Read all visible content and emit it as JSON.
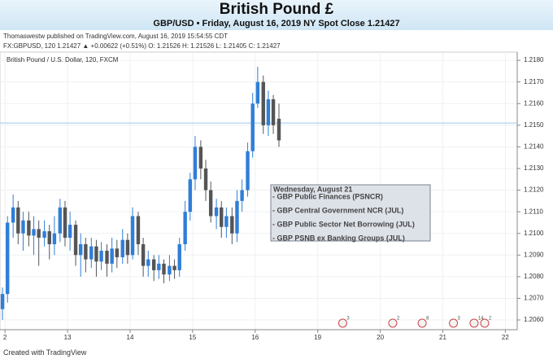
{
  "header": {
    "title": "British Pound £",
    "subtitle": "GBP/USD • Friday, August 16, 2019 NY Spot Close 1.21427"
  },
  "published": "Thomaswestw published on TradingView.com, August 16, 2019 15:54:55 CDT",
  "quote_line": "FX:GBPUSD, 120  1.21427  ▲ +0.00622 (+0.51%)  O: 1.21526  H: 1.21526  L: 1.21405  C: 1.21427",
  "footer": "Created with TradingView",
  "chart_data": {
    "type": "candlestick",
    "subtitle": "British Pound / U.S. Dollar, 120, FXCM",
    "up_color": "#2f7ed8",
    "down_color": "#555555",
    "grid": true,
    "x": [
      -0.04,
      0.04,
      0.13,
      0.21,
      0.29,
      0.38,
      0.46,
      0.54,
      0.63,
      0.71,
      0.79,
      0.88,
      0.96,
      1.04,
      1.13,
      1.21,
      1.29,
      1.38,
      1.46,
      1.54,
      1.63,
      1.71,
      1.79,
      1.88,
      1.96,
      2.04,
      2.13,
      2.21,
      2.29,
      2.38,
      2.46,
      2.54,
      2.63,
      2.71,
      2.79,
      2.88,
      2.96,
      3.04,
      3.13,
      3.21,
      3.29,
      3.38,
      3.46,
      3.54,
      3.63,
      3.71,
      3.79,
      3.88,
      3.96,
      4.04,
      4.13,
      4.21,
      4.29,
      4.38
    ],
    "open": [
      1.2065,
      1.2072,
      1.2105,
      1.2112,
      1.21,
      1.2106,
      1.2099,
      1.2102,
      1.2098,
      1.2101,
      1.2095,
      1.21,
      1.2112,
      1.2098,
      1.2104,
      1.209,
      1.2095,
      1.2088,
      1.2094,
      1.2087,
      1.2092,
      1.2086,
      1.2093,
      1.2089,
      1.2097,
      1.209,
      1.2108,
      1.2095,
      1.2085,
      1.2088,
      1.2083,
      1.2086,
      1.2081,
      1.2085,
      1.2083,
      1.2095,
      1.211,
      1.2125,
      1.214,
      1.213,
      1.212,
      1.2108,
      1.2112,
      1.2103,
      1.2108,
      1.21,
      1.2115,
      1.212,
      1.2138,
      1.216,
      1.217,
      1.215,
      1.2162,
      1.2153
    ],
    "high": [
      1.2075,
      1.2108,
      1.2118,
      1.2115,
      1.211,
      1.211,
      1.2108,
      1.2106,
      1.2106,
      1.2104,
      1.2108,
      1.2116,
      1.2115,
      1.211,
      1.2106,
      1.21,
      1.2098,
      1.2098,
      1.2097,
      1.2096,
      1.2095,
      1.2098,
      1.2097,
      1.2102,
      1.21,
      1.2112,
      1.211,
      1.2098,
      1.2092,
      1.209,
      1.209,
      1.2088,
      1.209,
      1.2088,
      1.2098,
      1.2115,
      1.2128,
      1.2145,
      1.2143,
      1.2134,
      1.2124,
      1.2116,
      1.2115,
      1.2112,
      1.2112,
      1.212,
      1.2125,
      1.2142,
      1.2165,
      1.2177,
      1.2173,
      1.2166,
      1.2164,
      1.216
    ],
    "low": [
      1.206,
      1.2068,
      1.2098,
      1.2095,
      1.2092,
      1.2094,
      1.209,
      1.2085,
      1.2094,
      1.2088,
      1.209,
      1.2096,
      1.2094,
      1.2092,
      1.2085,
      1.208,
      1.2082,
      1.2084,
      1.208,
      1.2083,
      1.208,
      1.2082,
      1.2084,
      1.2086,
      1.2086,
      1.2088,
      1.209,
      1.208,
      1.208,
      1.2078,
      1.2079,
      1.2077,
      1.2078,
      1.2079,
      1.208,
      1.2092,
      1.2106,
      1.212,
      1.2125,
      1.2115,
      1.2105,
      1.2102,
      1.2098,
      1.2098,
      1.2095,
      1.2096,
      1.211,
      1.2117,
      1.2135,
      1.2158,
      1.2146,
      1.2145,
      1.2146,
      1.214
    ],
    "close": [
      1.2072,
      1.2105,
      1.2112,
      1.21,
      1.2106,
      1.2099,
      1.2102,
      1.2098,
      1.2101,
      1.2095,
      1.21,
      1.2112,
      1.2098,
      1.2104,
      1.209,
      1.2095,
      1.2088,
      1.2094,
      1.2087,
      1.2092,
      1.2086,
      1.2093,
      1.2089,
      1.2097,
      1.209,
      1.2108,
      1.2095,
      1.2085,
      1.2088,
      1.2083,
      1.2086,
      1.2081,
      1.2085,
      1.2083,
      1.2095,
      1.211,
      1.2125,
      1.214,
      1.213,
      1.212,
      1.2108,
      1.2112,
      1.2103,
      1.2108,
      1.21,
      1.2115,
      1.212,
      1.2138,
      1.216,
      1.217,
      1.215,
      1.2162,
      1.215,
      1.2143
    ],
    "hline": 1.2151,
    "xlim": [
      -0.08,
      8.19
    ],
    "xticks": [
      {
        "value": 0,
        "label": "2"
      },
      {
        "value": 1,
        "label": "13"
      },
      {
        "value": 2,
        "label": "14"
      },
      {
        "value": 3,
        "label": "15"
      },
      {
        "value": 4,
        "label": "16"
      },
      {
        "value": 5,
        "label": "19"
      },
      {
        "value": 6,
        "label": "20"
      },
      {
        "value": 7,
        "label": "21"
      },
      {
        "value": 8,
        "label": "22"
      }
    ],
    "ylim": [
      1.20555,
      1.21838
    ],
    "yticks": [
      {
        "value": 1.206,
        "label": "1.2060"
      },
      {
        "value": 1.207,
        "label": "1.2070"
      },
      {
        "value": 1.208,
        "label": "1.2080"
      },
      {
        "value": 1.209,
        "label": "1.2090"
      },
      {
        "value": 1.21,
        "label": "1.2100"
      },
      {
        "value": 1.211,
        "label": "1.2110"
      },
      {
        "value": 1.212,
        "label": "1.2120"
      },
      {
        "value": 1.213,
        "label": "1.2130"
      },
      {
        "value": 1.214,
        "label": "1.2140"
      },
      {
        "value": 1.215,
        "label": "1.2150"
      },
      {
        "value": 1.216,
        "label": "1.2160"
      },
      {
        "value": 1.217,
        "label": "1.2170"
      },
      {
        "value": 1.218,
        "label": "1.2180"
      }
    ],
    "events": [
      {
        "x": 5.4,
        "label": "3"
      },
      {
        "x": 6.2,
        "label": "2"
      },
      {
        "x": 6.67,
        "label": "8"
      },
      {
        "x": 7.17,
        "label": "3"
      },
      {
        "x": 7.5,
        "label": "14"
      },
      {
        "x": 7.67,
        "label": "2"
      }
    ],
    "callout": {
      "title": "Wednesday, August 21",
      "items": [
        "- GBP Public Finances (PSNCR)",
        "- GBP Central Government NCR (JUL)",
        "- GBP Public Sector Net Borrowing (JUL)",
        "-  GBP PSNB ex Banking Groups (JUL)"
      ]
    }
  }
}
